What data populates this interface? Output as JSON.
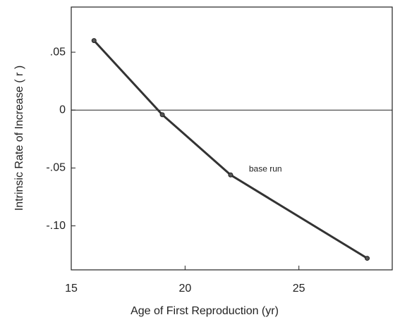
{
  "chart_data": {
    "type": "line",
    "x_label": "Age of First Reproduction (yr)",
    "y_label": "Intrinsic Rate of Increase ( r )",
    "x": [
      16,
      19,
      22,
      28
    ],
    "values": [
      0.06,
      -0.004,
      -0.056,
      -0.128
    ],
    "color": "#333333",
    "annotation": {
      "text": "base run",
      "point": 2
    },
    "xlim": [
      15,
      29.1
    ],
    "ylim": [
      -0.138,
      0.089
    ],
    "xticks": [
      15,
      20,
      25
    ],
    "yticks": [
      {
        "value": 0.05,
        "label": ".05"
      },
      0,
      {
        "value": -0.05,
        "label": "-.05"
      },
      {
        "value": -0.1,
        "label": "-.10"
      }
    ],
    "zero_line": true
  }
}
